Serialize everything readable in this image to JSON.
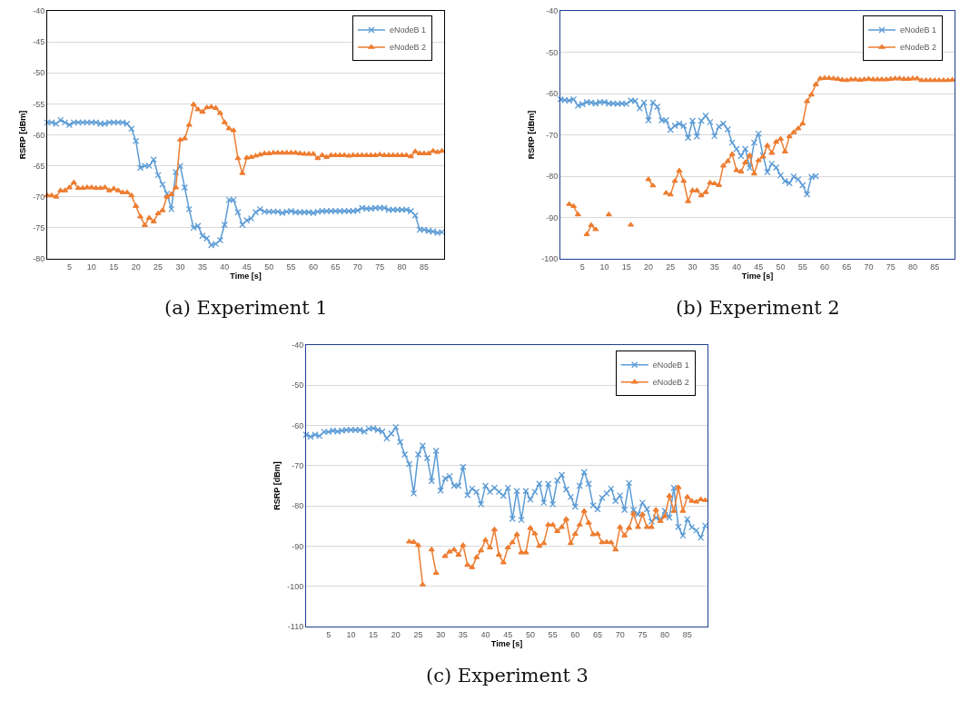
{
  "chart_data": [
    {
      "type": "line",
      "xlabel": "Time [s]",
      "ylabel": "RSRP [dBm]",
      "annotations": [
        "(a) Experiment 1"
      ],
      "grid": "y",
      "legend": "top right",
      "xlim": [
        0,
        89.5
      ],
      "xticks": [
        5,
        10,
        15,
        20,
        25,
        30,
        35,
        40,
        45,
        50,
        55,
        60,
        65,
        70,
        75,
        80,
        85
      ],
      "ylim": [
        -80,
        -40
      ],
      "yticks": [
        -80,
        -75,
        -70,
        -65,
        -60,
        -55,
        -50,
        -45,
        -40
      ],
      "x": [
        0,
        1,
        2,
        3,
        4,
        5,
        6,
        7,
        8,
        9,
        10,
        11,
        12,
        13,
        14,
        15,
        16,
        17,
        18,
        19,
        20,
        21,
        22,
        23,
        24,
        25,
        26,
        27,
        28,
        29,
        30,
        31,
        32,
        33,
        34,
        35,
        36,
        37,
        38,
        39,
        40,
        41,
        42,
        43,
        44,
        45,
        46,
        47,
        48,
        49,
        50,
        51,
        52,
        53,
        54,
        55,
        56,
        57,
        58,
        59,
        60,
        61,
        62,
        63,
        64,
        65,
        66,
        67,
        68,
        69,
        70,
        71,
        72,
        73,
        74,
        75,
        76,
        77,
        78,
        79,
        80,
        81,
        82,
        83,
        84,
        85,
        86,
        87,
        88,
        89
      ],
      "series": [
        {
          "name": "eNodeB 1",
          "color": "#5b9bd5",
          "marker": "cross",
          "values": [
            -58,
            -58,
            -58.2,
            -57.6,
            -58,
            -58.4,
            -58,
            -58,
            -58,
            -58,
            -58,
            -58,
            -58.2,
            -58.2,
            -58,
            -58,
            -58,
            -58,
            -58.2,
            -59,
            -61,
            -65.3,
            -65,
            -65,
            -64,
            -66.5,
            -68,
            -69.5,
            -72,
            -66,
            -65,
            -68.5,
            -72,
            -75,
            -74.7,
            -76.3,
            -76.7,
            -77.8,
            -77.6,
            -77,
            -74.5,
            -70.5,
            -70.5,
            -72.5,
            -74.5,
            -73.8,
            -73.5,
            -72.5,
            -72,
            -72.4,
            -72.4,
            -72.4,
            -72.4,
            -72.6,
            -72.4,
            -72.3,
            -72.5,
            -72.5,
            -72.5,
            -72.5,
            -72.6,
            -72.4,
            -72.3,
            -72.3,
            -72.3,
            -72.3,
            -72.3,
            -72.3,
            -72.3,
            -72.3,
            -72.2,
            -71.8,
            -71.9,
            -71.9,
            -71.8,
            -71.8,
            -71.8,
            -72.1,
            -72.1,
            -72.1,
            -72.1,
            -72.1,
            -72.3,
            -73,
            -75.3,
            -75.3,
            -75.5,
            -75.6,
            -75.8,
            -75.7
          ]
        },
        {
          "name": "eNodeB 2",
          "color": "#ed7d31",
          "marker": "triangle",
          "values": [
            -69.8,
            -69.8,
            -70,
            -69,
            -69,
            -68.5,
            -67.7,
            -68.6,
            -68.6,
            -68.5,
            -68.5,
            -68.6,
            -68.6,
            -68.5,
            -69,
            -68.7,
            -69,
            -69.3,
            -69.3,
            -69.8,
            -71.5,
            -73.2,
            -74.6,
            -73.4,
            -74,
            -72.7,
            -72.2,
            -70,
            -69.6,
            -68.5,
            -60.8,
            -60.6,
            -58.4,
            -55.1,
            -55.9,
            -56.3,
            -55.6,
            -55.5,
            -55.7,
            -56.5,
            -58,
            -59,
            -59.3,
            -63.8,
            -66.2,
            -63.7,
            -63.6,
            -63.4,
            -63.2,
            -63,
            -63,
            -62.9,
            -62.9,
            -62.9,
            -62.9,
            -62.9,
            -62.9,
            -63,
            -63.1,
            -63.1,
            -63.1,
            -63.8,
            -63.3,
            -63.6,
            -63.3,
            -63.3,
            -63.3,
            -63.3,
            -63.4,
            -63.3,
            -63.3,
            -63.3,
            -63.3,
            -63.3,
            -63.3,
            -63.2,
            -63.3,
            -63.3,
            -63.3,
            -63.3,
            -63.3,
            -63.3,
            -63.5,
            -62.7,
            -63,
            -63,
            -63,
            -62.6,
            -62.8,
            -62.6
          ]
        }
      ]
    },
    {
      "type": "line",
      "xlabel": "Time [s]",
      "ylabel": "RSRP [dBm]",
      "annotations": [
        "(b) Experiment 2"
      ],
      "grid": "y",
      "legend": "top right",
      "xlim": [
        0,
        89.5
      ],
      "xticks": [
        5,
        10,
        15,
        20,
        25,
        30,
        35,
        40,
        45,
        50,
        55,
        60,
        65,
        70,
        75,
        80,
        85
      ],
      "ylim": [
        -100,
        -40
      ],
      "yticks": [
        -100,
        -90,
        -80,
        -70,
        -60,
        -50,
        -40
      ],
      "x": [
        0,
        1,
        2,
        3,
        4,
        5,
        6,
        7,
        8,
        9,
        10,
        11,
        12,
        13,
        14,
        15,
        16,
        17,
        18,
        19,
        20,
        21,
        22,
        23,
        24,
        25,
        26,
        27,
        28,
        29,
        30,
        31,
        32,
        33,
        34,
        35,
        36,
        37,
        38,
        39,
        40,
        41,
        42,
        43,
        44,
        45,
        46,
        47,
        48,
        49,
        50,
        51,
        52,
        53,
        54,
        55,
        56,
        57,
        58,
        59,
        60,
        61,
        62,
        63,
        64,
        65,
        66,
        67,
        68,
        69,
        70,
        71,
        72,
        73,
        74,
        75,
        76,
        77,
        78,
        79,
        80,
        81,
        82,
        83,
        84,
        85,
        86,
        87,
        88,
        89
      ],
      "series": [
        {
          "name": "eNodeB 1",
          "color": "#5b9bd5",
          "marker": "cross",
          "values": [
            -61.4,
            -61.6,
            -61.7,
            -61.4,
            -62.9,
            -62.6,
            -62.1,
            -62.2,
            -62.4,
            -62.1,
            -62.1,
            -62.4,
            -62.4,
            -62.5,
            -62.4,
            -62.5,
            -61.7,
            -61.8,
            -63.6,
            -62.2,
            -66.5,
            -62.2,
            -63.2,
            -66.5,
            -66.5,
            -68.8,
            -67.8,
            -67.3,
            -67.8,
            -70.7,
            -66.6,
            -70.4,
            -66.6,
            -65.4,
            -66.9,
            -70.3,
            -68,
            -67.3,
            -68.7,
            -71.9,
            -73.4,
            -75.1,
            -73.4,
            -78,
            -71.9,
            -69.7,
            -75,
            -79,
            -77,
            -77.9,
            -79.8,
            -81.2,
            -81.7,
            -80.1,
            -80.8,
            -82.2,
            -84.4,
            -80.2,
            -80,
            null,
            null,
            null,
            null,
            null,
            null,
            null,
            null,
            null,
            null,
            null,
            null,
            null,
            null,
            null,
            null,
            null,
            null,
            null,
            null,
            null,
            null,
            null,
            null,
            null,
            null,
            null,
            null,
            null,
            null,
            null
          ]
        },
        {
          "name": "eNodeB 2",
          "color": "#ed7d31",
          "marker": "triangle",
          "values": [
            null,
            null,
            -86.8,
            -87.3,
            -89.3,
            null,
            -94.1,
            -91.9,
            -92.9,
            null,
            null,
            -89.3,
            null,
            null,
            null,
            null,
            -91.8,
            null,
            null,
            null,
            -80.8,
            -82.3,
            null,
            null,
            -84.1,
            -84.5,
            -81.2,
            -78.7,
            -81.2,
            -86.1,
            -83.5,
            -83.5,
            -84.7,
            -83.9,
            -81.6,
            -81.8,
            -82.2,
            -77.5,
            -76.4,
            -74.7,
            -78.6,
            -78.9,
            -76.7,
            -75,
            -79.4,
            -76.2,
            -75.3,
            -72.6,
            -74.4,
            -71.7,
            -71,
            -74.1,
            -70.4,
            -69.4,
            -68.5,
            -67.3,
            -61.9,
            -60.3,
            -57.8,
            -56.4,
            -56.3,
            -56.3,
            -56.4,
            -56.5,
            -56.7,
            -56.8,
            -56.6,
            -56.6,
            -56.7,
            -56.6,
            -56.5,
            -56.6,
            -56.6,
            -56.6,
            -56.6,
            -56.5,
            -56.4,
            -56.4,
            -56.5,
            -56.5,
            -56.4,
            -56.4,
            -56.8,
            -56.8,
            -56.8,
            -56.8,
            -56.8,
            -56.8,
            -56.8,
            -56.7
          ]
        }
      ]
    },
    {
      "type": "line",
      "xlabel": "Time [s]",
      "ylabel": "RSRP [dBm]",
      "annotations": [
        "(c) Experiment 3"
      ],
      "grid": "y",
      "legend": "top right",
      "xlim": [
        0,
        89.5
      ],
      "xticks": [
        5,
        10,
        15,
        20,
        25,
        30,
        35,
        40,
        45,
        50,
        55,
        60,
        65,
        70,
        75,
        80,
        85
      ],
      "ylim": [
        -110,
        -40
      ],
      "yticks": [
        -110,
        -100,
        -90,
        -80,
        -70,
        -60,
        -50,
        -40
      ],
      "x": [
        0,
        1,
        2,
        3,
        4,
        5,
        6,
        7,
        8,
        9,
        10,
        11,
        12,
        13,
        14,
        15,
        16,
        17,
        18,
        19,
        20,
        21,
        22,
        23,
        24,
        25,
        26,
        27,
        28,
        29,
        30,
        31,
        32,
        33,
        34,
        35,
        36,
        37,
        38,
        39,
        40,
        41,
        42,
        43,
        44,
        45,
        46,
        47,
        48,
        49,
        50,
        51,
        52,
        53,
        54,
        55,
        56,
        57,
        58,
        59,
        60,
        61,
        62,
        63,
        64,
        65,
        66,
        67,
        68,
        69,
        70,
        71,
        72,
        73,
        74,
        75,
        76,
        77,
        78,
        79,
        80,
        81,
        82,
        83,
        84,
        85,
        86,
        87,
        88,
        89
      ],
      "series": [
        {
          "name": "eNodeB 1",
          "color": "#5b9bd5",
          "marker": "cross",
          "values": [
            -62.3,
            -62.8,
            -62.3,
            -62.6,
            -61.6,
            -61.6,
            -61.3,
            -61.5,
            -61.3,
            -61.1,
            -61.1,
            -61.1,
            -61.1,
            -61.5,
            -60.8,
            -60.7,
            -61.1,
            -61.5,
            -63.2,
            -62,
            -60.4,
            -64.1,
            -67.2,
            -69.6,
            -76.9,
            -67.2,
            -65,
            -68.1,
            -73.8,
            -66.3,
            -76.2,
            -73.2,
            -72.6,
            -75,
            -75,
            -70.3,
            -77.3,
            -75.7,
            -76.5,
            -79.6,
            -75,
            -76.5,
            -75.5,
            -76.5,
            -77.5,
            -75.5,
            -83.2,
            -76.3,
            -83.5,
            -76.3,
            -78.4,
            -76.5,
            -74.5,
            -79.2,
            -74.5,
            -79.6,
            -73.7,
            -72.3,
            -75.9,
            -77.8,
            -80.2,
            -75,
            -71.6,
            -74.5,
            -79.9,
            -80.8,
            -78,
            -76.9,
            -75.7,
            -78.8,
            -77.4,
            -81,
            -74.3,
            -81,
            -82.1,
            -79.2,
            -80.8,
            -83.9,
            -82.9,
            -83.5,
            -81.2,
            -82.9,
            -75.5,
            -85.2,
            -87.4,
            -83.3,
            -85.3,
            -86.1,
            -87.9,
            -84.9
          ]
        },
        {
          "name": "eNodeB 2",
          "color": "#ed7d31",
          "marker": "triangle",
          "values": [
            null,
            null,
            null,
            null,
            null,
            null,
            null,
            null,
            null,
            null,
            null,
            null,
            null,
            null,
            null,
            null,
            null,
            null,
            null,
            null,
            null,
            null,
            null,
            -88.9,
            -89,
            -89.8,
            -99.6,
            null,
            -90.9,
            -96.7,
            null,
            -92.5,
            -91.4,
            -90.9,
            -92.2,
            -89.8,
            -94.7,
            -95.3,
            -92.8,
            -91.1,
            -88.5,
            -90.4,
            -85.9,
            -92.2,
            -94.1,
            -90.4,
            -89.1,
            -87.1,
            -91.6,
            -91.6,
            -85.5,
            -86.9,
            -90,
            -89.3,
            -84.7,
            -84.7,
            -86.3,
            -85.3,
            -83.3,
            -89.3,
            -87,
            -84.7,
            -81.3,
            -84.2,
            -87.1,
            -87,
            -89.1,
            -89,
            -89.1,
            -90.9,
            -85.3,
            -87.4,
            -85.5,
            -81.9,
            -85.3,
            -82.1,
            -85.3,
            -85.3,
            -81,
            -83.8,
            -82.6,
            -77.5,
            -81.3,
            -75.4,
            -81.3,
            -77.8,
            -78.8,
            -79,
            -78.4,
            -78.6
          ]
        }
      ]
    }
  ]
}
